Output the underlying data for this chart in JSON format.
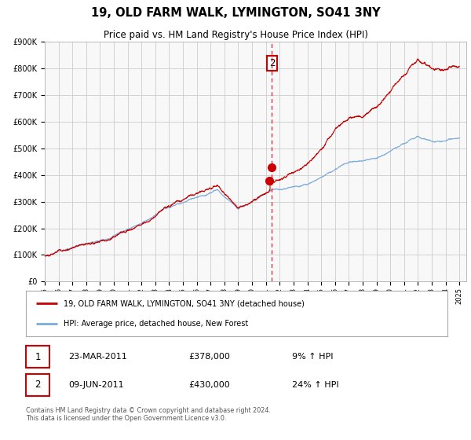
{
  "title": "19, OLD FARM WALK, LYMINGTON, SO41 3NY",
  "subtitle": "Price paid vs. HM Land Registry's House Price Index (HPI)",
  "legend_line1": "19, OLD FARM WALK, LYMINGTON, SO41 3NY (detached house)",
  "legend_line2": "HPI: Average price, detached house, New Forest",
  "transaction1_date": "23-MAR-2011",
  "transaction1_price": "£378,000",
  "transaction1_hpi": "9% ↑ HPI",
  "transaction2_date": "09-JUN-2011",
  "transaction2_price": "£430,000",
  "transaction2_hpi": "24% ↑ HPI",
  "footer": "Contains HM Land Registry data © Crown copyright and database right 2024.\nThis data is licensed under the Open Government Licence v3.0.",
  "red_color": "#cc0000",
  "blue_color": "#7aabdb",
  "dashed_color": "#cc0000",
  "grid_color": "#cccccc",
  "bg_color": "#ffffff",
  "plot_bg_color": "#f8f8f8",
  "ylim_min": 0,
  "ylim_max": 900000,
  "transaction1_year": 2011.22,
  "transaction1_value": 378000,
  "transaction2_year": 2011.44,
  "transaction2_value": 430000
}
